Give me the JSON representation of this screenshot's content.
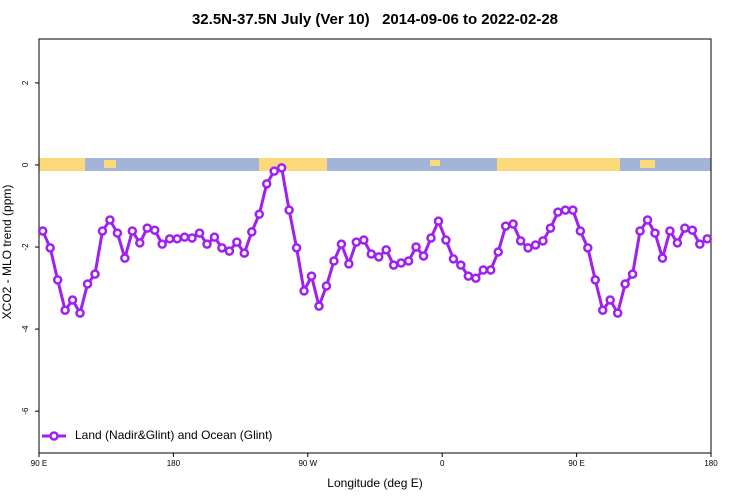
{
  "chart_data": {
    "type": "line",
    "title": "32.5N-37.5N July (Ver 10)   2014-09-06 to 2022-02-28",
    "x_label": "Longitude (deg E)",
    "y_label": "XCO2 - MLO trend (ppm)",
    "xlim": [
      90,
      540
    ],
    "ylim": [
      -7.02,
      3.07
    ],
    "xticks": [
      {
        "value": 90,
        "label": "90 E"
      },
      180,
      {
        "value": 270,
        "label": "90 W"
      },
      {
        "value": 360,
        "label": "0"
      },
      {
        "value": 450,
        "label": "90 E"
      },
      {
        "value": 540,
        "label": "180"
      }
    ],
    "yticks": [
      -6,
      -4,
      -2,
      0,
      2
    ],
    "legend": "bottom-left",
    "x": [
      92.5,
      97.5,
      102.5,
      107.5,
      112.5,
      117.5,
      122.5,
      127.5,
      132.5,
      137.5,
      142.5,
      147.5,
      152.5,
      157.5,
      162.5,
      167.5,
      172.5,
      177.5,
      182.5,
      187.5,
      192.5,
      197.5,
      202.5,
      207.5,
      212.5,
      217.5,
      222.5,
      227.5,
      232.5,
      237.5,
      242.5,
      247.5,
      252.5,
      257.5,
      262.5,
      267.5,
      272.5,
      277.5,
      282.5,
      287.5,
      292.5,
      297.5,
      302.5,
      307.5,
      312.5,
      317.5,
      322.5,
      327.5,
      332.5,
      337.5,
      342.5,
      347.5,
      352.5,
      357.5,
      362.5,
      367.5,
      372.5,
      377.5,
      382.5,
      387.5,
      392.5,
      397.5,
      402.5,
      407.5,
      412.5,
      417.5,
      422.5,
      427.5,
      432.5,
      437.5,
      442.5,
      447.5,
      452.5,
      457.5,
      462.5,
      467.5,
      472.5,
      477.5,
      482.5,
      487.5,
      492.5,
      497.5,
      502.5,
      507.5,
      512.5,
      517.5,
      522.5,
      527.5,
      532.5,
      537.5
    ],
    "series": [
      {
        "name": "Land (Nadir&Glint) and Ocean (Glint)",
        "color": "#a020f0",
        "values": [
          -1.61,
          -2.02,
          -2.8,
          -3.54,
          -3.29,
          -3.61,
          -2.9,
          -2.66,
          -1.61,
          -1.34,
          -1.66,
          -2.27,
          -1.61,
          -1.9,
          -1.54,
          -1.59,
          -1.93,
          -1.8,
          -1.8,
          -1.76,
          -1.78,
          -1.66,
          -1.93,
          -1.76,
          -2.02,
          -2.1,
          -1.88,
          -2.15,
          -1.63,
          -1.2,
          -0.46,
          -0.15,
          -0.07,
          -1.1,
          -2.02,
          -3.07,
          -2.71,
          -3.44,
          -2.95,
          -2.34,
          -1.93,
          -2.41,
          -1.88,
          -1.83,
          -2.17,
          -2.24,
          -2.07,
          -2.44,
          -2.39,
          -2.34,
          -2.0,
          -2.22,
          -1.78,
          -1.37,
          -1.83,
          -2.29,
          -2.44,
          -2.71,
          -2.76,
          -2.56,
          -2.56,
          -2.12,
          -1.49,
          -1.44,
          -1.85,
          -2.02,
          -1.95,
          -1.85,
          -1.54,
          -1.15,
          -1.1,
          -1.1,
          -1.61,
          -2.02,
          -2.8,
          -3.54,
          -3.29,
          -3.61,
          -2.9,
          -2.66,
          -1.61,
          -1.34,
          -1.66,
          -2.27,
          -1.61,
          -1.9,
          -1.54,
          -1.59,
          -1.93,
          -1.8
        ]
      }
    ]
  }
}
